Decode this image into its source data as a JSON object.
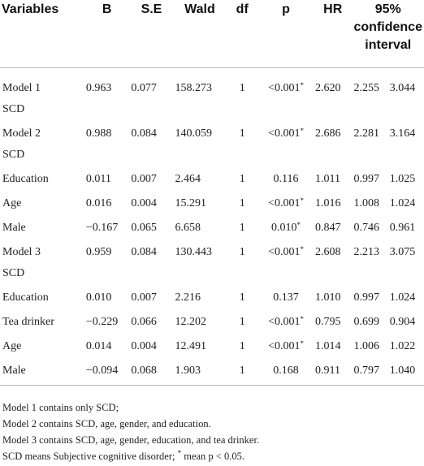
{
  "headers": {
    "variables": "Variables",
    "b": "B",
    "se": "S.E",
    "wald": "Wald",
    "df": "df",
    "p": "p",
    "hr": "HR",
    "ci_line1": "95%",
    "ci_line2": "confidence",
    "ci_line3": "interval"
  },
  "rows": [
    {
      "var": "Model 1",
      "b": "0.963",
      "se": "0.077",
      "wald": "158.273",
      "df": "1",
      "p": "<0.001",
      "p_star": "*",
      "hr": "2.620",
      "ci_low": "2.255",
      "ci_high": "3.044"
    },
    {
      "var": "SCD"
    },
    {
      "var": "Model 2",
      "b": "0.988",
      "se": "0.084",
      "wald": "140.059",
      "df": "1",
      "p": "<0.001",
      "p_star": "*",
      "hr": "2.686",
      "ci_low": "2.281",
      "ci_high": "3.164"
    },
    {
      "var": "SCD"
    },
    {
      "var": "Education",
      "b": "0.011",
      "se": "0.007",
      "wald": "2.464",
      "df": "1",
      "p": "0.116",
      "p_star": "",
      "hr": "1.011",
      "ci_low": "0.997",
      "ci_high": "1.025"
    },
    {
      "var": "Age",
      "b": "0.016",
      "se": "0.004",
      "wald": "15.291",
      "df": "1",
      "p": "<0.001",
      "p_star": "*",
      "hr": "1.016",
      "ci_low": "1.008",
      "ci_high": "1.024"
    },
    {
      "var": "Male",
      "b": "−0.167",
      "se": "0.065",
      "wald": "6.658",
      "df": "1",
      "p": "0.010",
      "p_star": "*",
      "hr": "0.847",
      "ci_low": "0.746",
      "ci_high": "0.961"
    },
    {
      "var": "Model 3",
      "b": "0.959",
      "se": "0.084",
      "wald": "130.443",
      "df": "1",
      "p": "<0.001",
      "p_star": "*",
      "hr": "2.608",
      "ci_low": "2.213",
      "ci_high": "3.075"
    },
    {
      "var": "SCD"
    },
    {
      "var": "Education",
      "b": "0.010",
      "se": "0.007",
      "wald": "2.216",
      "df": "1",
      "p": "0.137",
      "p_star": "",
      "hr": "1.010",
      "ci_low": "0.997",
      "ci_high": "1.024"
    },
    {
      "var": "Tea drinker",
      "b": "−0.229",
      "se": "0.066",
      "wald": "12.202",
      "df": "1",
      "p": "<0.001",
      "p_star": "*",
      "hr": "0.795",
      "ci_low": "0.699",
      "ci_high": "0.904"
    },
    {
      "var": "Age",
      "b": "0.014",
      "se": "0.004",
      "wald": "12.491",
      "df": "1",
      "p": "<0.001",
      "p_star": "*",
      "hr": "1.014",
      "ci_low": "1.006",
      "ci_high": "1.022"
    },
    {
      "var": "Male",
      "b": "−0.094",
      "se": "0.068",
      "wald": "1.903",
      "df": "1",
      "p": "0.168",
      "p_star": "",
      "hr": "0.911",
      "ci_low": "0.797",
      "ci_high": "1.040"
    }
  ],
  "notes": {
    "line1": "Model 1 contains only SCD;",
    "line2": "Model 2 contains SCD, age, gender, and education.",
    "line3": "Model 3 contains SCD, age, gender, education, and tea drinker.",
    "line4_pre": "SCD means Subjective cognitive disorder; ",
    "line4_star": "*",
    "line4_post": " mean p < 0.05."
  }
}
